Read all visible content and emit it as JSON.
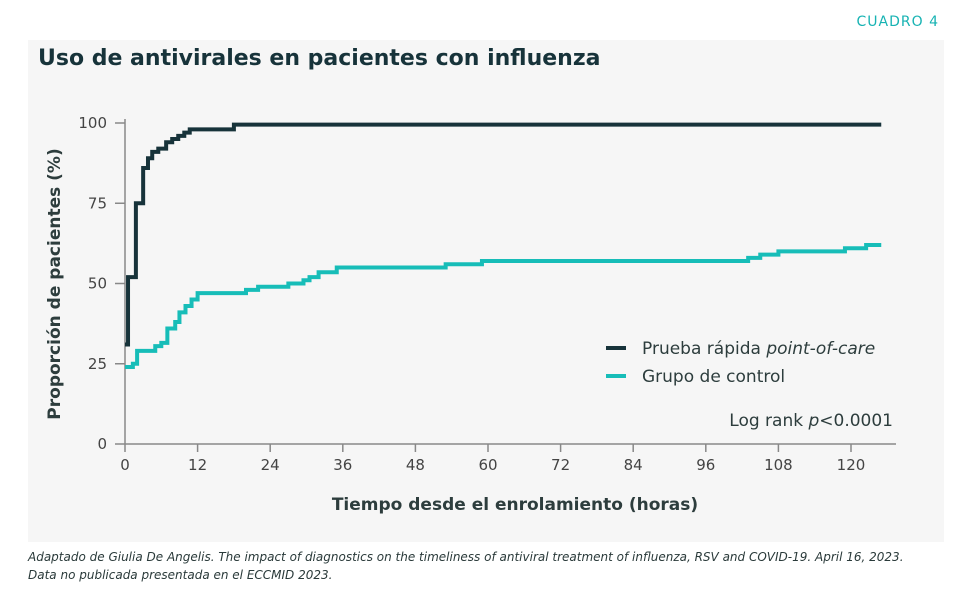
{
  "badge": "CUADRO 4",
  "caption": {
    "line1": "Adaptado de Giulia De Angelis. The impact of diagnostics on the timeliness of antiviral treatment of influenza, RSV and COVID-19. April 16, 2023.",
    "line2": "Data no publicada presentada en el ECCMID 2023."
  },
  "chart_data": {
    "type": "line",
    "step": true,
    "title": "Uso de antivirales en pacientes con influenza",
    "xlabel": "Tiempo desde el enrolamiento (horas)",
    "ylabel": "Proporción de pacientes (%)",
    "xlim": [
      0,
      128
    ],
    "ylim": [
      0,
      100
    ],
    "xticks": [
      "0",
      "12",
      "24",
      "36",
      "48",
      "60",
      "72",
      "84",
      "96",
      "108",
      "120"
    ],
    "yticks": [
      "0",
      "25",
      "50",
      "75",
      "100"
    ],
    "legend_position": "right",
    "annotation": {
      "prefix": "Log rank ",
      "p": "p",
      "suffix": "<0.0001"
    },
    "series": [
      {
        "name": "Prueba rápida",
        "name_italic": "point-of-care",
        "color": "#17333a",
        "x": [
          0,
          0.5,
          1.8,
          3,
          3.8,
          4.5,
          5.5,
          6.8,
          7.8,
          8.8,
          9.8,
          10.7,
          18,
          125
        ],
        "y": [
          31,
          52,
          75,
          86,
          89,
          91,
          92,
          94,
          95,
          96,
          97,
          98,
          99.5,
          99.5
        ]
      },
      {
        "name": "Grupo de control",
        "name_italic": "",
        "color": "#17bdb8",
        "x": [
          0,
          1.3,
          2,
          5,
          6,
          7,
          8.3,
          9,
          10,
          11,
          12,
          20,
          22,
          27,
          29.5,
          30.5,
          32,
          35,
          53,
          59,
          103,
          105,
          108,
          119,
          122.5,
          125
        ],
        "y": [
          24,
          25,
          29,
          30.5,
          31.5,
          36,
          38,
          41,
          43,
          45,
          47,
          48,
          49,
          50,
          51,
          52,
          53.5,
          55,
          56,
          57,
          58,
          59,
          60,
          61,
          62,
          62
        ]
      }
    ]
  }
}
